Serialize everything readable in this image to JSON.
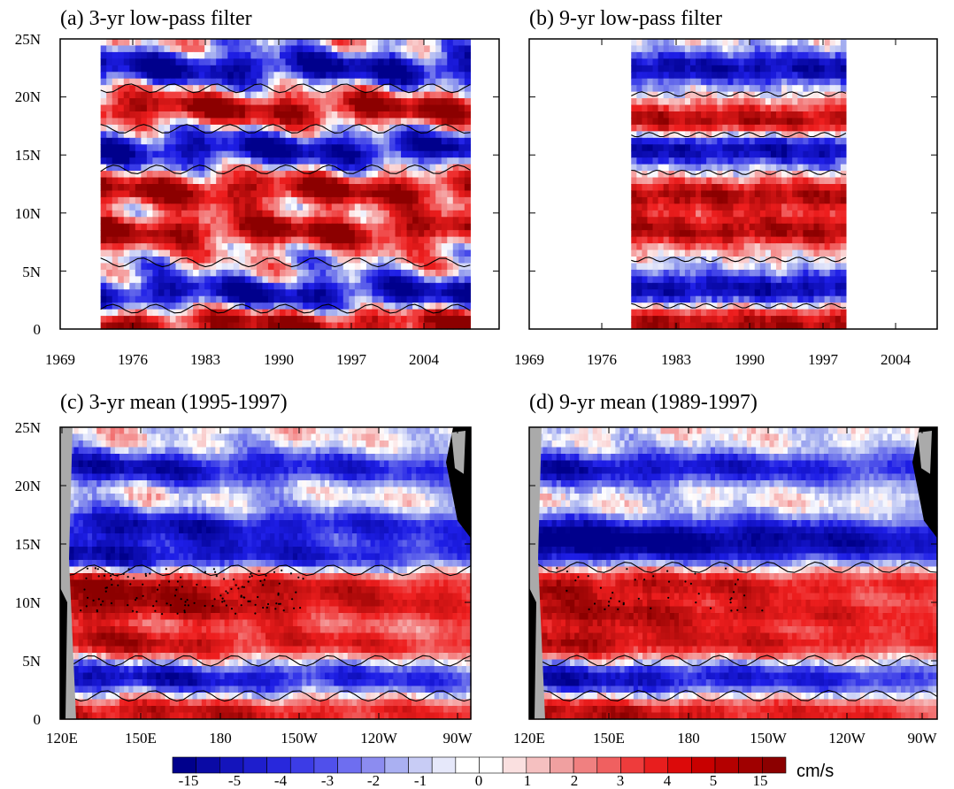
{
  "colors": {
    "neg_max": "#00008c",
    "neg_mid": "#1e1ee6",
    "neg_light": "#aab4f0",
    "zero": "#ffffff",
    "pos_light": "#f5aaaa",
    "pos_mid": "#ee1e1e",
    "pos_max": "#8c0000",
    "land": "#000000",
    "coast_gray": "#aaaaaa"
  },
  "chart_data": [
    {
      "type": "heatmap",
      "title": "(a) 3-yr low-pass filter",
      "x_ticks": [
        "1969",
        "1976",
        "1983",
        "1990",
        "1997",
        "2004"
      ],
      "y_ticks": [
        "0",
        "5N",
        "10N",
        "15N",
        "20N",
        "25N"
      ],
      "xlim": [
        1969,
        2007
      ],
      "ylim": [
        0,
        25
      ],
      "data_xlim": [
        1972.5,
        2004.5
      ],
      "data_ylim": [
        0,
        25
      ],
      "contour_zero": true,
      "latitude_bands": [
        {
          "lat": 0.5,
          "sign": 1
        },
        {
          "lat": 3,
          "sign": -1
        },
        {
          "lat": 8.5,
          "sign": 1
        },
        {
          "lat": 12,
          "sign": 1
        },
        {
          "lat": 15.5,
          "sign": -1
        },
        {
          "lat": 19,
          "sign": 1
        },
        {
          "lat": 22.5,
          "sign": -1
        }
      ]
    },
    {
      "type": "heatmap",
      "title": "(b) 9-yr low-pass filter",
      "x_ticks": [
        "1969",
        "1976",
        "1983",
        "1990",
        "1997",
        "2004"
      ],
      "y_ticks": [
        "",
        "",
        "",
        "",
        "",
        ""
      ],
      "xlim": [
        1969,
        2007
      ],
      "ylim": [
        0,
        25
      ],
      "data_xlim": [
        1978.5,
        1998.5
      ],
      "data_ylim": [
        0,
        25
      ],
      "contour_zero": true,
      "latitude_bands": [
        {
          "lat": 0.5,
          "sign": 1
        },
        {
          "lat": 3.5,
          "sign": -1
        },
        {
          "lat": 8.5,
          "sign": 1
        },
        {
          "lat": 11.5,
          "sign": 1
        },
        {
          "lat": 15.5,
          "sign": -1
        },
        {
          "lat": 18,
          "sign": 1
        },
        {
          "lat": 22.5,
          "sign": -1
        }
      ]
    },
    {
      "type": "heatmap",
      "title": "(c) 3-yr mean (1995-1997)",
      "x_ticks": [
        "120E",
        "150E",
        "180",
        "150W",
        "120W",
        "90W"
      ],
      "y_ticks": [
        "0",
        "5N",
        "10N",
        "15N",
        "20N",
        "25N"
      ],
      "xlim": [
        120,
        275
      ],
      "ylim": [
        0,
        25
      ],
      "contour_zero": true,
      "stippling": true,
      "latitude_bands": [
        {
          "lat": 0.5,
          "sign": 1
        },
        {
          "lat": 3.5,
          "sign": -1
        },
        {
          "lat": 6.5,
          "sign": 1
        },
        {
          "lat": 9.5,
          "sign": 1
        },
        {
          "lat": 11.5,
          "sign": 1
        },
        {
          "lat": 14,
          "sign": -1
        },
        {
          "lat": 16.5,
          "sign": -1
        },
        {
          "lat": 21.5,
          "sign": -1
        }
      ]
    },
    {
      "type": "heatmap",
      "title": "(d) 9-yr mean (1989-1997)",
      "x_ticks": [
        "120E",
        "150E",
        "180",
        "150W",
        "120W",
        "90W"
      ],
      "y_ticks": [
        "",
        "",
        "",
        "",
        "",
        ""
      ],
      "xlim": [
        120,
        275
      ],
      "ylim": [
        0,
        25
      ],
      "contour_zero": true,
      "stippling": true,
      "latitude_bands": [
        {
          "lat": 0.5,
          "sign": 1
        },
        {
          "lat": 3.5,
          "sign": -1
        },
        {
          "lat": 6.5,
          "sign": 1
        },
        {
          "lat": 9,
          "sign": 1
        },
        {
          "lat": 11.5,
          "sign": 1
        },
        {
          "lat": 14.5,
          "sign": -1
        },
        {
          "lat": 16,
          "sign": -1
        },
        {
          "lat": 21.5,
          "sign": -1
        }
      ]
    }
  ],
  "colorbar": {
    "labels": [
      "-15",
      "-5",
      "-4",
      "-3",
      "-2",
      "-1",
      "0",
      "1",
      "2",
      "3",
      "4",
      "5",
      "15"
    ],
    "unit": "cm/s",
    "colors": [
      "#00008c",
      "#0a0aa5",
      "#1414bb",
      "#1e1ecd",
      "#2828dc",
      "#3c3ce6",
      "#5050eb",
      "#6e6ef0",
      "#8c8cf0",
      "#aab0f2",
      "#c8ccf5",
      "#e6e8fa",
      "#ffffff",
      "#ffffff",
      "#fae0e0",
      "#f5c0c0",
      "#f0a0a0",
      "#f08080",
      "#f06060",
      "#ee3c3c",
      "#e81e1e",
      "#dc0a0a",
      "#c80000",
      "#b40000",
      "#a00000",
      "#8c0000"
    ]
  }
}
